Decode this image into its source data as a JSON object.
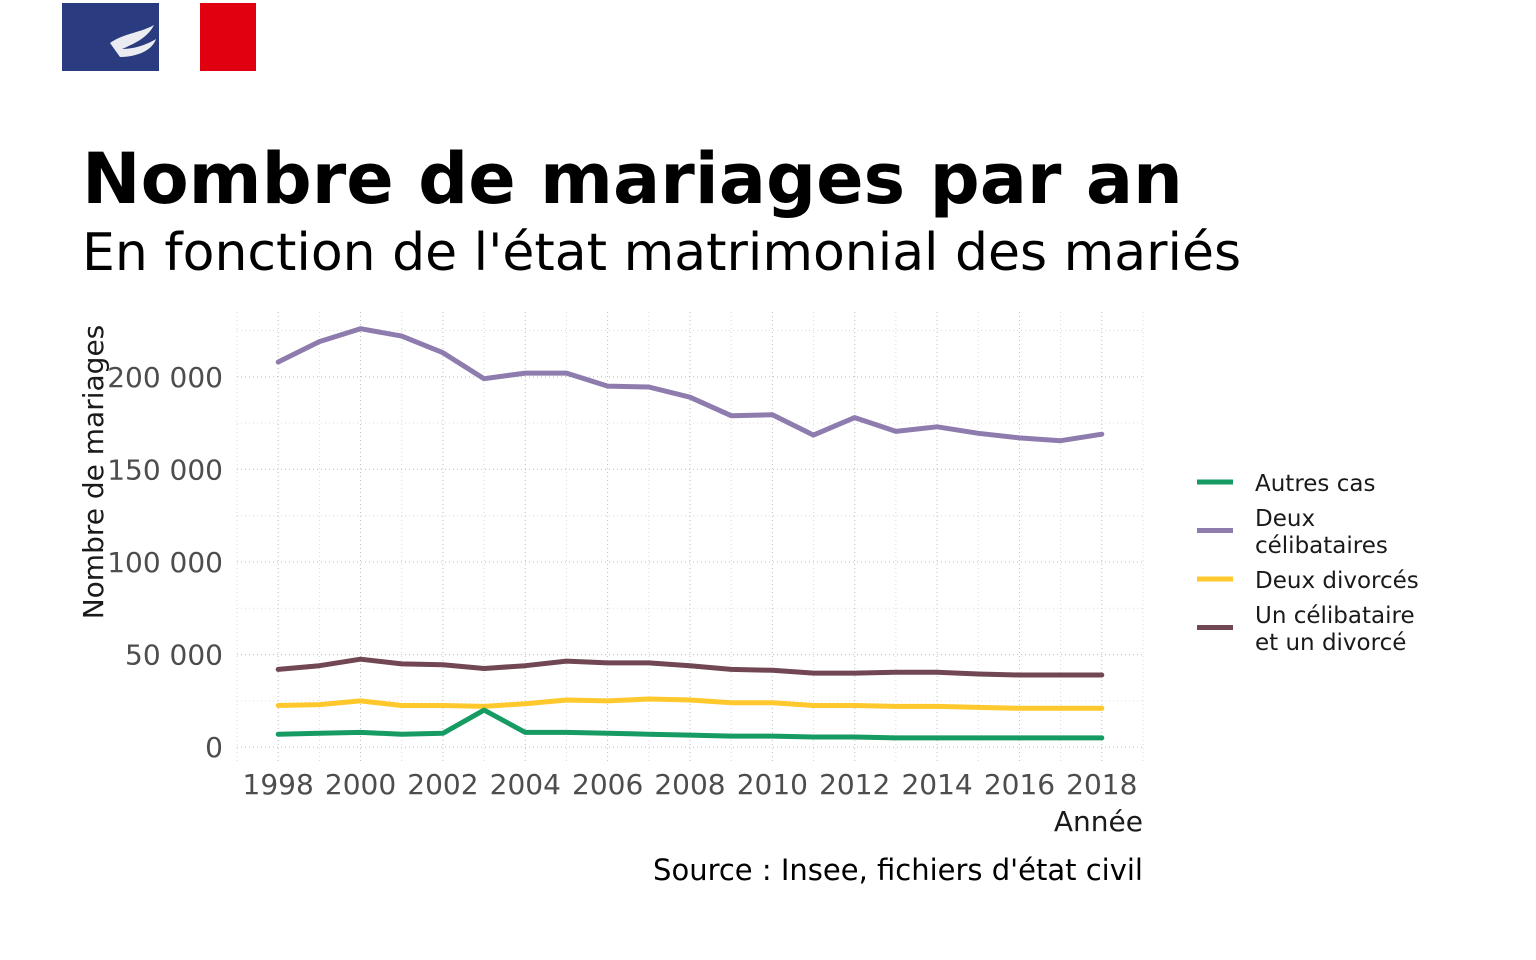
{
  "colors": {
    "flag_blue": "#2a3c7f",
    "flag_red": "#e1000f"
  },
  "chart_data": {
    "type": "line",
    "title": "Nombre de mariages par an",
    "subtitle": "En fonction de l'état matrimonial des mariés",
    "xlabel": "Année",
    "ylabel": "Nombre de mariages",
    "caption": "Source : Insee, fichiers d'état civil",
    "xlim": [
      1997,
      2019
    ],
    "ylim": [
      -8000,
      235000
    ],
    "x_ticks": [
      1998,
      2000,
      2002,
      2004,
      2006,
      2008,
      2010,
      2012,
      2014,
      2016,
      2018
    ],
    "x_tick_labels": [
      "1998",
      "2000",
      "2002",
      "2004",
      "2006",
      "2008",
      "2010",
      "2012",
      "2014",
      "2016",
      "2018"
    ],
    "y_ticks": [
      0,
      50000,
      100000,
      150000,
      200000
    ],
    "y_tick_labels": [
      "0",
      "50 000",
      "100 000",
      "150 000",
      "200 000"
    ],
    "grid": true,
    "legend_position": "right",
    "x": [
      1998,
      1999,
      2000,
      2001,
      2002,
      2003,
      2004,
      2005,
      2006,
      2007,
      2008,
      2009,
      2010,
      2011,
      2012,
      2013,
      2014,
      2015,
      2016,
      2017,
      2018
    ],
    "series": [
      {
        "name": "Autres cas",
        "color": "#169b62",
        "values": [
          7000,
          7500,
          8000,
          7000,
          7500,
          20000,
          8000,
          8000,
          7500,
          7000,
          6500,
          6000,
          6000,
          5500,
          5500,
          5000,
          5000,
          5000,
          5000,
          5000,
          5000
        ]
      },
      {
        "name": "Deux célibataires",
        "legend_lines": [
          "Deux",
          "célibataires"
        ],
        "color": "#8d7cad",
        "values": [
          208000,
          219000,
          226000,
          222000,
          213000,
          199000,
          202000,
          202000,
          195000,
          194500,
          189000,
          179000,
          179500,
          168500,
          178000,
          170500,
          173000,
          169500,
          167000,
          165500,
          169000
        ]
      },
      {
        "name": "Deux divorcés",
        "color": "#ffc82c",
        "values": [
          22500,
          23000,
          25000,
          22500,
          22500,
          22000,
          23500,
          25500,
          25000,
          26000,
          25500,
          24000,
          24000,
          22500,
          22500,
          22000,
          22000,
          21500,
          21000,
          21000,
          21000
        ]
      },
      {
        "name": "Un célibataire et un divorcé",
        "legend_lines": [
          "Un célibataire",
          "et un divorcé"
        ],
        "color": "#714753",
        "values": [
          42000,
          44000,
          47500,
          45000,
          44500,
          42500,
          44000,
          46500,
          45500,
          45500,
          44000,
          42000,
          41500,
          40000,
          40000,
          40500,
          40500,
          39500,
          39000,
          39000,
          39000
        ]
      }
    ]
  }
}
